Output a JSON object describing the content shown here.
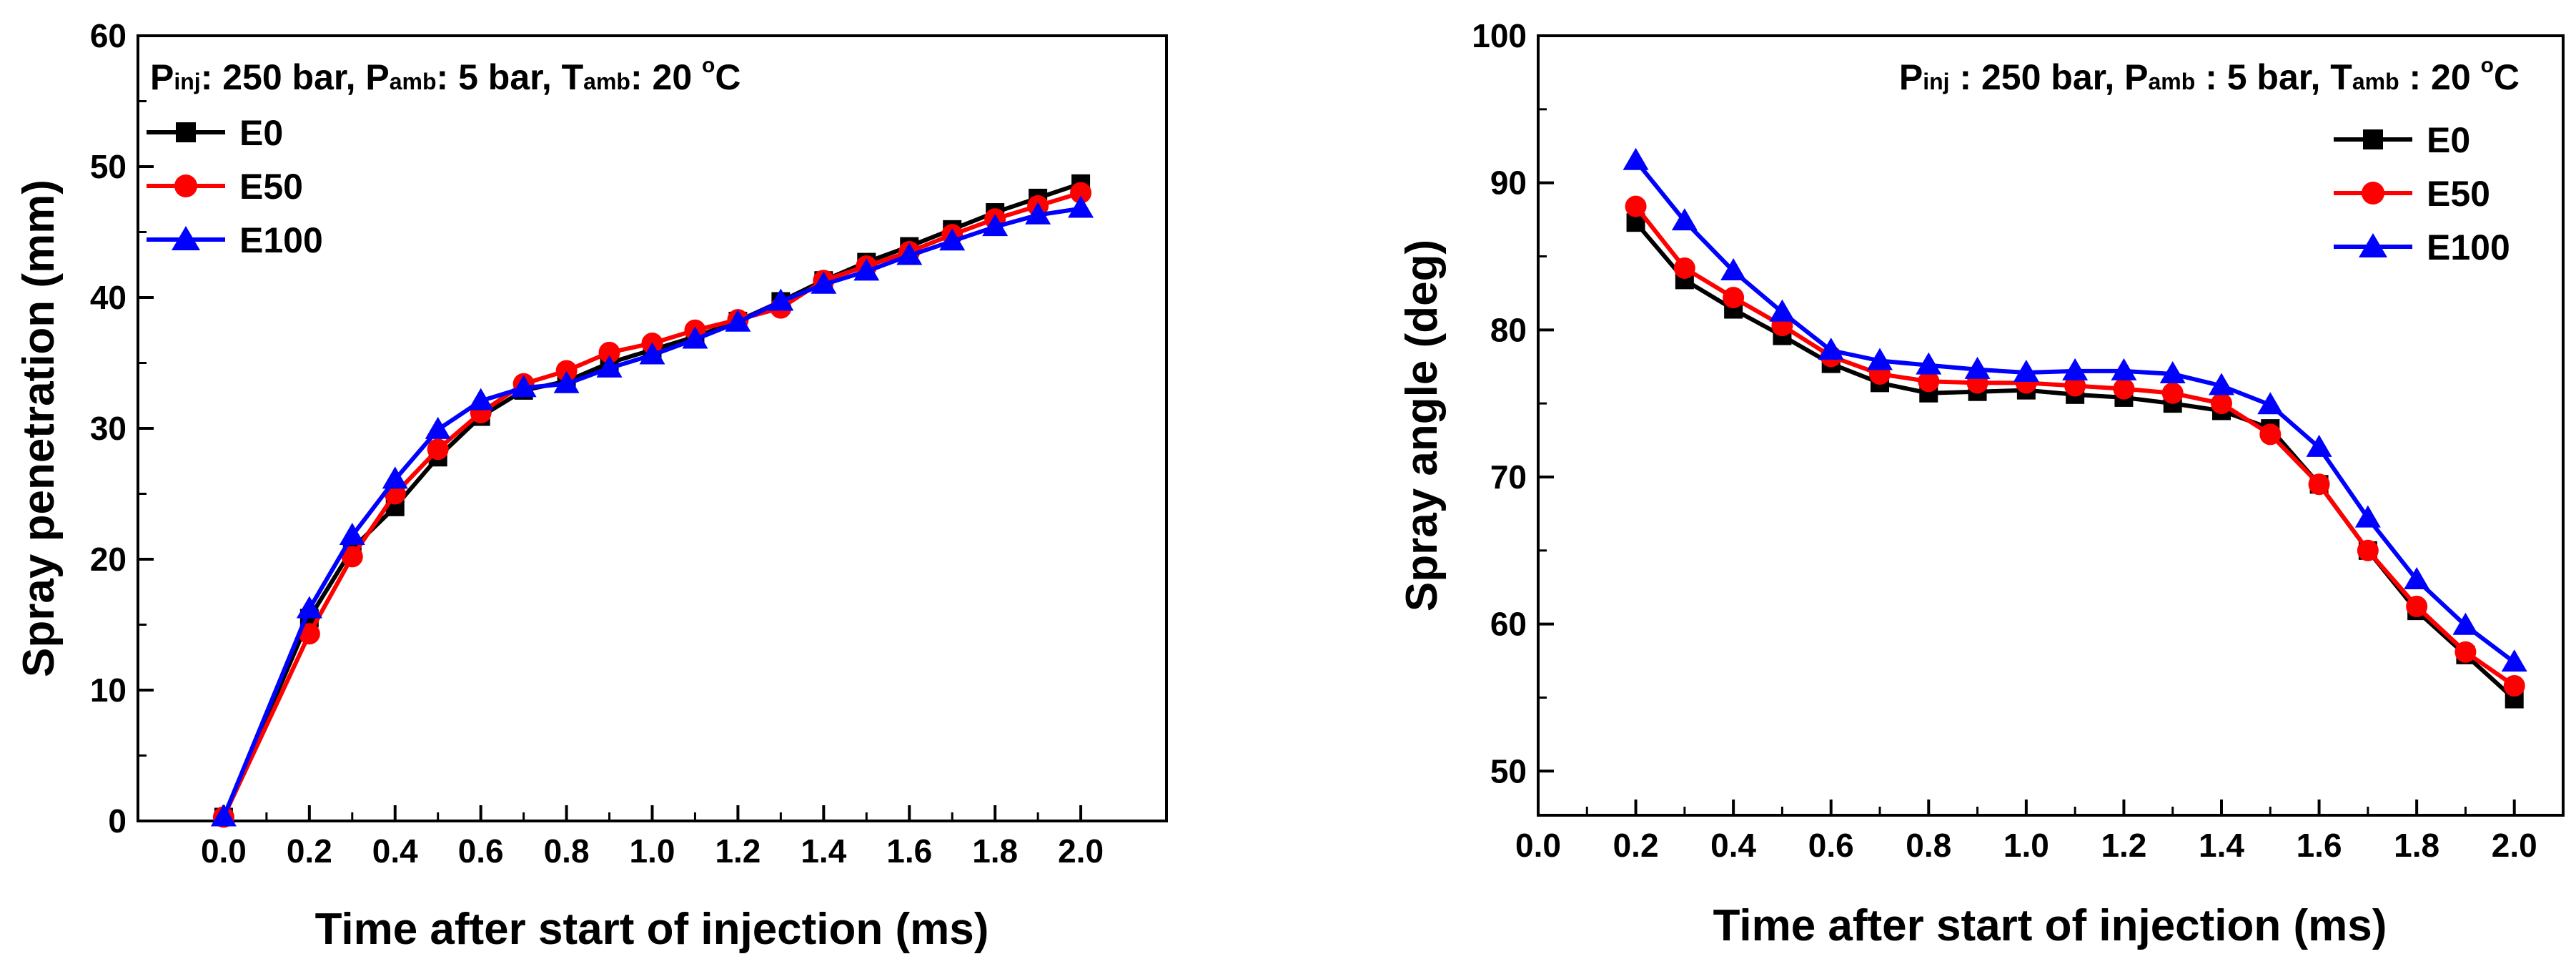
{
  "chart_data": [
    {
      "type": "line",
      "title": "",
      "xlabel": "Time after start of injection (ms)",
      "ylabel": "Spray penetration (mm)",
      "xlim": [
        -0.2,
        2.2
      ],
      "ylim": [
        0,
        60
      ],
      "xticks": [
        "0.0",
        "0.2",
        "0.4",
        "0.6",
        "0.8",
        "1.0",
        "1.2",
        "1.4",
        "1.6",
        "1.8",
        "2.0"
      ],
      "yticks": [
        "0",
        "10",
        "20",
        "30",
        "40",
        "50",
        "60"
      ],
      "annotation": {
        "p1": "P",
        "p1_sub": "inj",
        "p1_rest": ": 250 bar, ",
        "p2": "P",
        "p2_sub": "amb",
        "p2_rest": ": 5 bar, ",
        "p3": "T",
        "p3_sub": "amb",
        "p3_rest": ": 20 ",
        "deg": "o",
        "unit": "C"
      },
      "legend_position": "top-left",
      "series": [
        {
          "name": "E0",
          "color": "#000000",
          "marker": "square",
          "x": [
            0.0,
            0.2,
            0.3,
            0.4,
            0.5,
            0.6,
            0.7,
            0.8,
            0.9,
            1.0,
            1.1,
            1.2,
            1.3,
            1.4,
            1.5,
            1.6,
            1.7,
            1.8,
            1.9,
            2.0
          ],
          "y": [
            0.3,
            15.5,
            20.8,
            24.0,
            27.8,
            30.9,
            32.9,
            33.6,
            35.0,
            36.0,
            37.0,
            38.2,
            39.7,
            41.3,
            42.7,
            43.9,
            45.2,
            46.5,
            47.6,
            48.7
          ]
        },
        {
          "name": "E50",
          "color": "#ff0000",
          "marker": "circle",
          "x": [
            0.0,
            0.2,
            0.3,
            0.4,
            0.5,
            0.6,
            0.7,
            0.8,
            0.9,
            1.0,
            1.1,
            1.2,
            1.3,
            1.4,
            1.5,
            1.6,
            1.7,
            1.8,
            1.9,
            2.0
          ],
          "y": [
            0.3,
            14.3,
            20.2,
            25.0,
            28.4,
            31.2,
            33.4,
            34.4,
            35.8,
            36.5,
            37.5,
            38.3,
            39.2,
            41.3,
            42.4,
            43.5,
            44.8,
            46.0,
            47.0,
            48.0
          ]
        },
        {
          "name": "E100",
          "color": "#0000ff",
          "marker": "triangle",
          "x": [
            0.0,
            0.2,
            0.3,
            0.4,
            0.5,
            0.6,
            0.7,
            0.8,
            0.9,
            1.0,
            1.1,
            1.2,
            1.3,
            1.4,
            1.5,
            1.6,
            1.7,
            1.8,
            1.9,
            2.0
          ],
          "y": [
            0.3,
            16.2,
            21.8,
            26.1,
            29.9,
            32.1,
            33.1,
            33.4,
            34.6,
            35.6,
            36.8,
            38.1,
            39.7,
            41.0,
            42.0,
            43.2,
            44.3,
            45.4,
            46.3,
            46.8
          ]
        }
      ]
    },
    {
      "type": "line",
      "title": "",
      "xlabel": "Time after start of injection (ms)",
      "ylabel": "Spray angle (deg)",
      "xlim": [
        0.0,
        2.1
      ],
      "ylim": [
        47,
        100
      ],
      "xticks": [
        "0.0",
        "0.2",
        "0.4",
        "0.6",
        "0.8",
        "1.0",
        "1.2",
        "1.4",
        "1.6",
        "1.8",
        "2.0"
      ],
      "yticks": [
        "50",
        "60",
        "70",
        "80",
        "90",
        "100"
      ],
      "annotation": {
        "p1": "P",
        "p1_sub": "inj",
        "p1_rest": " : 250 bar, ",
        "p2": "P",
        "p2_sub": "amb",
        "p2_rest": " : 5 bar, ",
        "p3": "T",
        "p3_sub": "amb",
        "p3_rest": " : 20 ",
        "deg": "o",
        "unit": "C"
      },
      "legend_position": "top-right",
      "series": [
        {
          "name": "E0",
          "color": "#000000",
          "marker": "square",
          "x": [
            0.2,
            0.3,
            0.4,
            0.5,
            0.6,
            0.7,
            0.8,
            0.9,
            1.0,
            1.1,
            1.2,
            1.3,
            1.4,
            1.5,
            1.6,
            1.7,
            1.8,
            1.9,
            2.0
          ],
          "y": [
            87.3,
            83.4,
            81.4,
            79.6,
            77.7,
            76.4,
            75.7,
            75.8,
            75.9,
            75.6,
            75.4,
            75.0,
            74.5,
            73.3,
            69.5,
            65.0,
            60.9,
            57.9,
            54.9
          ]
        },
        {
          "name": "E50",
          "color": "#ff0000",
          "marker": "circle",
          "x": [
            0.2,
            0.3,
            0.4,
            0.5,
            0.6,
            0.7,
            0.8,
            0.9,
            1.0,
            1.1,
            1.2,
            1.3,
            1.4,
            1.5,
            1.6,
            1.7,
            1.8,
            1.9,
            2.0
          ],
          "y": [
            88.4,
            84.2,
            82.2,
            80.3,
            78.2,
            77.0,
            76.5,
            76.4,
            76.4,
            76.2,
            76.0,
            75.7,
            75.0,
            72.9,
            69.5,
            65.0,
            61.2,
            58.1,
            55.8
          ]
        },
        {
          "name": "E100",
          "color": "#0000ff",
          "marker": "triangle",
          "x": [
            0.2,
            0.3,
            0.4,
            0.5,
            0.6,
            0.7,
            0.8,
            0.9,
            1.0,
            1.1,
            1.2,
            1.3,
            1.4,
            1.5,
            1.6,
            1.7,
            1.8,
            1.9,
            2.0
          ],
          "y": [
            91.5,
            87.4,
            84.0,
            81.2,
            78.6,
            77.9,
            77.6,
            77.3,
            77.1,
            77.2,
            77.2,
            77.0,
            76.2,
            74.9,
            72.0,
            67.2,
            63.0,
            59.9,
            57.4
          ]
        }
      ]
    }
  ]
}
